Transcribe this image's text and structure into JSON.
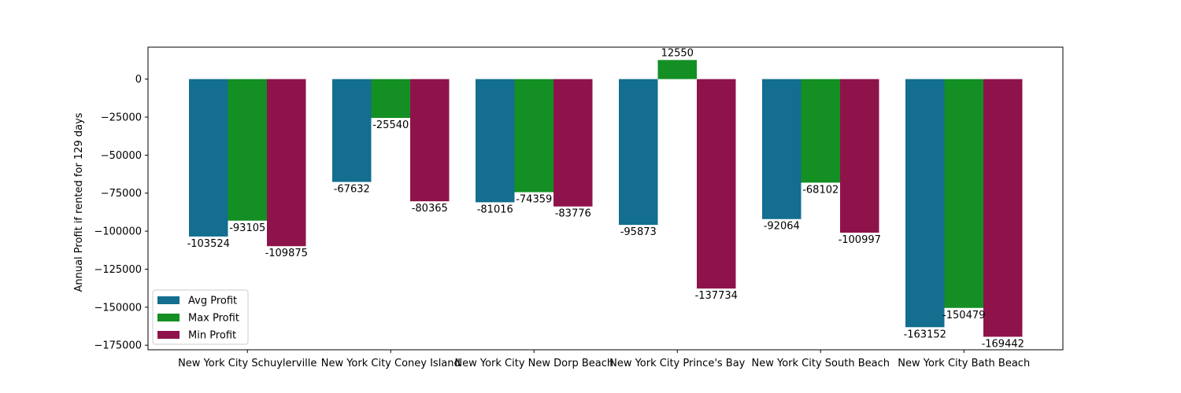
{
  "chart_data": {
    "type": "bar",
    "title": "",
    "xlabel": "",
    "ylabel": "Annual Profit if rented for 129 days",
    "ylim": [
      -178000,
      21000
    ],
    "yticks": [
      0,
      -25000,
      -50000,
      -75000,
      -100000,
      -125000,
      -150000,
      -175000
    ],
    "ytick_labels": [
      "0",
      "−25000",
      "−50000",
      "−75000",
      "−100000",
      "−125000",
      "−150000",
      "−175000"
    ],
    "grid": false,
    "legend_position": "lower-left",
    "categories": [
      "New York City Schuylerville",
      "New York City Coney Island",
      "New York City New Dorp Beach",
      "New York City Prince's Bay",
      "New York City South Beach",
      "New York City Bath Beach"
    ],
    "series": [
      {
        "name": "Avg Profit",
        "color": "#136e8f",
        "values": [
          -103524,
          -67632,
          -81016,
          -95873,
          -92064,
          -163152
        ],
        "value_labels": [
          "-103524",
          "-67632",
          "-81016",
          "-95873",
          "-92064",
          "-163152"
        ]
      },
      {
        "name": "Max Profit",
        "color": "#138f24",
        "values": [
          -93105,
          -25540,
          -74359,
          12550,
          -68102,
          -150479
        ],
        "value_labels": [
          "-93105",
          "-25540",
          "-74359",
          "12550",
          "-68102",
          "-150479"
        ]
      },
      {
        "name": "Min Profit",
        "color": "#8f134b",
        "values": [
          -109875,
          -80365,
          -83776,
          -137734,
          -100997,
          -169442
        ],
        "value_labels": [
          "-109875",
          "-80365",
          "-83776",
          "-137734",
          "-100997",
          "-169442"
        ]
      }
    ]
  }
}
